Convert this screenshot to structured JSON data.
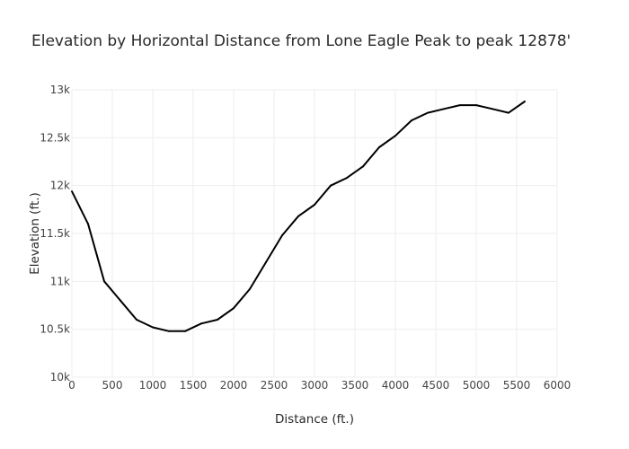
{
  "chart_data": {
    "type": "line",
    "title": "Elevation by Horizontal Distance from Lone Eagle Peak to peak 12878'",
    "xlabel": "Distance (ft.)",
    "ylabel": "Elevation (ft.)",
    "xlim": [
      0,
      6000
    ],
    "ylim": [
      10000,
      13000
    ],
    "xticks": [
      0,
      500,
      1000,
      1500,
      2000,
      2500,
      3000,
      3500,
      4000,
      4500,
      5000,
      5500,
      6000
    ],
    "xtick_labels": [
      "0",
      "500",
      "1000",
      "1500",
      "2000",
      "2500",
      "3000",
      "3500",
      "4000",
      "4500",
      "5000",
      "5500",
      "6000"
    ],
    "yticks": [
      10000,
      10500,
      11000,
      11500,
      12000,
      12500,
      13000
    ],
    "ytick_labels": [
      "10k",
      "10.5k",
      "11k",
      "11.5k",
      "12k",
      "12.5k",
      "13k"
    ],
    "grid": true,
    "color": "#000000",
    "series": [
      {
        "x": [
          0,
          200,
          400,
          600,
          800,
          1000,
          1200,
          1400,
          1600,
          1800,
          2000,
          2200,
          2400,
          2600,
          2800,
          3000,
          3200,
          3400,
          3600,
          3800,
          4000,
          4200,
          4400,
          4600,
          4800,
          5000,
          5200,
          5400,
          5600
        ],
        "y": [
          11940,
          11600,
          11000,
          10800,
          10600,
          10520,
          10480,
          10480,
          10560,
          10600,
          10720,
          10920,
          11200,
          11480,
          11680,
          11800,
          12000,
          12080,
          12200,
          12400,
          12520,
          12680,
          12760,
          12800,
          12840,
          12840,
          12800,
          12760,
          12878
        ]
      }
    ]
  }
}
